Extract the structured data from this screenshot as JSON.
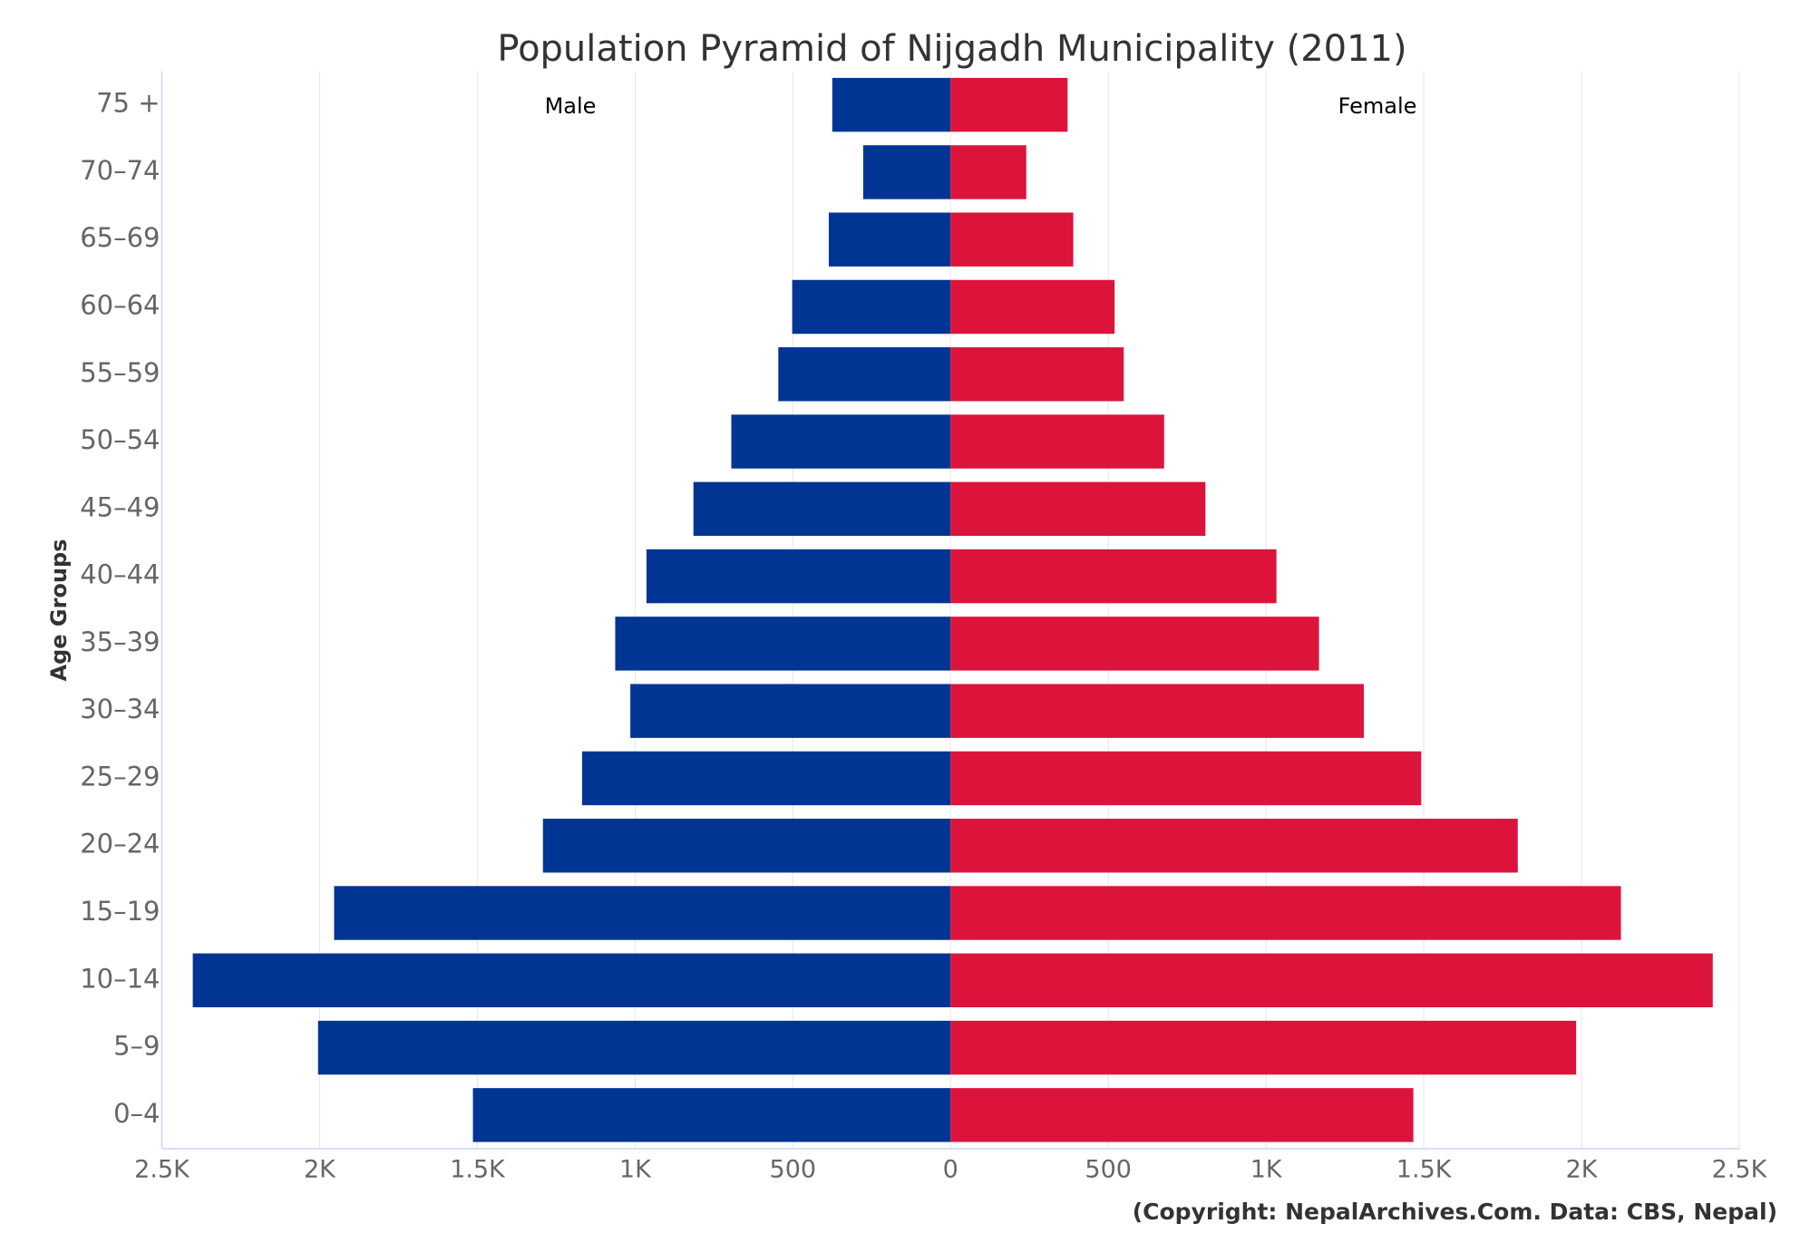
{
  "chart_data": {
    "type": "bar",
    "orientation": "horizontal",
    "title": "Population Pyramid of Nijgadh Municipality (2011)",
    "y_label": "Age Groups",
    "source": "(Copyright: NepalArchives.Com. Data: CBS, Nepal)",
    "categories": [
      "75 +",
      "70–74",
      "65–69",
      "60–64",
      "55–59",
      "50–54",
      "45–49",
      "40–44",
      "35–39",
      "30–34",
      "25–29",
      "20–24",
      "15–19",
      "10–14",
      "5–9",
      "0–4"
    ],
    "series": [
      {
        "name": "Male",
        "color": "#003594",
        "values": [
          -375,
          -277,
          -386,
          -502,
          -546,
          -695,
          -815,
          -964,
          -1063,
          -1015,
          -1168,
          -1292,
          -1954,
          -2402,
          -2005,
          -1514
        ]
      },
      {
        "name": "Female",
        "color": "#dc143c",
        "values": [
          371,
          240,
          389,
          520,
          549,
          677,
          808,
          1033,
          1168,
          1310,
          1492,
          1798,
          2125,
          2416,
          1983,
          1467
        ]
      }
    ],
    "xlim": [
      -2500,
      2500
    ],
    "xticks": [
      {
        "value": -2500,
        "label": "2.5K"
      },
      {
        "value": -2000,
        "label": "2K"
      },
      {
        "value": -1500,
        "label": "1.5K"
      },
      {
        "value": -1000,
        "label": "1K"
      },
      {
        "value": -500,
        "label": "500"
      },
      0,
      500,
      {
        "value": 1000,
        "label": "1K"
      },
      {
        "value": 1500,
        "label": "1.5K"
      },
      {
        "value": 2000,
        "label": "2K"
      },
      {
        "value": 2500,
        "label": "2.5K"
      }
    ],
    "grid": true
  }
}
